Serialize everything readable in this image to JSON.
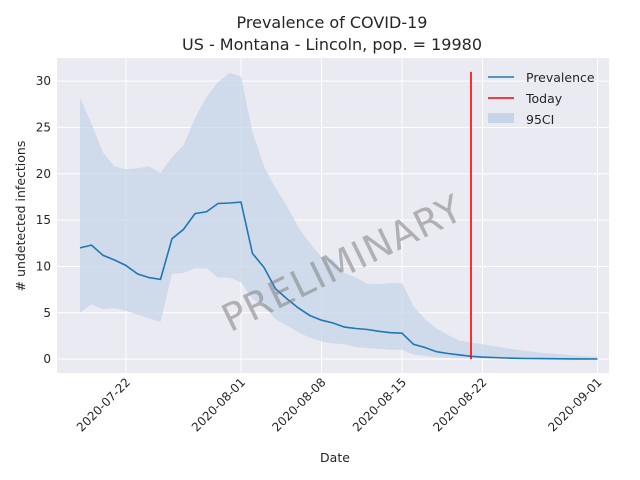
{
  "chart_data": {
    "type": "line",
    "title": "Prevalence of COVID-19",
    "subtitle": "US - Montana - Lincoln, pop. = 19980",
    "xlabel": "Date",
    "ylabel": "# undetected infections",
    "x_ticks": [
      "2020-07-22",
      "2020-08-01",
      "2020-08-08",
      "2020-08-15",
      "2020-08-22",
      "2020-09-01"
    ],
    "y_ticks": [
      0,
      5,
      10,
      15,
      20,
      25,
      30
    ],
    "xlim": [
      "2020-07-16",
      "2020-09-02"
    ],
    "ylim": [
      -1.5,
      32.5
    ],
    "grid": true,
    "legend_position": "top-right",
    "watermark": "PRELIMINARY",
    "today": "2020-08-21",
    "today_range": [
      0,
      31
    ],
    "colors": {
      "prevalence": "#1f77b4",
      "today": "#ff0000",
      "ci": "#c6d5e8",
      "background": "#eaeaf2",
      "grid": "#ffffff"
    },
    "series": [
      {
        "name": "Prevalence",
        "x": [
          "2020-07-18",
          "2020-07-19",
          "2020-07-20",
          "2020-07-21",
          "2020-07-22",
          "2020-07-23",
          "2020-07-24",
          "2020-07-25",
          "2020-07-26",
          "2020-07-27",
          "2020-07-28",
          "2020-07-29",
          "2020-07-30",
          "2020-07-31",
          "2020-08-01",
          "2020-08-02",
          "2020-08-03",
          "2020-08-04",
          "2020-08-05",
          "2020-08-06",
          "2020-08-07",
          "2020-08-08",
          "2020-08-09",
          "2020-08-10",
          "2020-08-11",
          "2020-08-12",
          "2020-08-13",
          "2020-08-14",
          "2020-08-15",
          "2020-08-16",
          "2020-08-17",
          "2020-08-18",
          "2020-08-19",
          "2020-08-20",
          "2020-08-21",
          "2020-08-22",
          "2020-08-23",
          "2020-08-24",
          "2020-08-25",
          "2020-08-26",
          "2020-08-27",
          "2020-08-28",
          "2020-08-29",
          "2020-08-30",
          "2020-08-31",
          "2020-09-01"
        ],
        "values": [
          12.0,
          12.3,
          11.2,
          10.7,
          10.1,
          9.2,
          8.8,
          8.6,
          13.0,
          14.0,
          15.7,
          15.9,
          16.8,
          16.85,
          16.95,
          11.4,
          9.9,
          7.6,
          6.5,
          5.5,
          4.7,
          4.2,
          3.9,
          3.45,
          3.3,
          3.2,
          3.0,
          2.85,
          2.8,
          1.6,
          1.25,
          0.8,
          0.6,
          0.45,
          0.3,
          0.22,
          0.17,
          0.12,
          0.09,
          0.07,
          0.05,
          0.04,
          0.03,
          0.02,
          0.02,
          0.01
        ]
      },
      {
        "name": "95CI",
        "x": [
          "2020-07-18",
          "2020-07-19",
          "2020-07-20",
          "2020-07-21",
          "2020-07-22",
          "2020-07-23",
          "2020-07-24",
          "2020-07-25",
          "2020-07-26",
          "2020-07-27",
          "2020-07-28",
          "2020-07-29",
          "2020-07-30",
          "2020-07-31",
          "2020-08-01",
          "2020-08-02",
          "2020-08-03",
          "2020-08-04",
          "2020-08-05",
          "2020-08-06",
          "2020-08-07",
          "2020-08-08",
          "2020-08-09",
          "2020-08-10",
          "2020-08-11",
          "2020-08-12",
          "2020-08-13",
          "2020-08-14",
          "2020-08-15",
          "2020-08-16",
          "2020-08-17",
          "2020-08-18",
          "2020-08-19",
          "2020-08-20",
          "2020-08-21",
          "2020-08-22",
          "2020-08-23",
          "2020-08-24",
          "2020-08-25",
          "2020-08-26",
          "2020-08-27",
          "2020-08-28",
          "2020-08-29",
          "2020-08-30",
          "2020-08-31",
          "2020-09-01"
        ],
        "lower": [
          5.0,
          5.9,
          5.4,
          5.5,
          5.2,
          4.8,
          4.4,
          4.0,
          9.2,
          9.3,
          9.8,
          9.8,
          8.8,
          8.8,
          8.3,
          6.5,
          5.8,
          4.3,
          3.6,
          2.9,
          2.3,
          1.9,
          1.7,
          1.6,
          1.3,
          1.2,
          1.1,
          1.0,
          1.0,
          0.5,
          0.35,
          0.2,
          0.15,
          0.1,
          0.07,
          0.05,
          0.04,
          0.03,
          0.02,
          0.01,
          0.01,
          0.01,
          0.0,
          0.0,
          0.0,
          0.0
        ],
        "upper": [
          28.2,
          25.4,
          22.3,
          20.8,
          20.5,
          20.6,
          20.8,
          20.1,
          21.8,
          23.1,
          26.0,
          28.3,
          29.9,
          30.9,
          30.5,
          24.5,
          20.8,
          18.5,
          16.5,
          14.2,
          12.5,
          11.0,
          10.7,
          9.3,
          8.8,
          8.1,
          8.1,
          8.2,
          8.2,
          5.7,
          4.3,
          3.3,
          2.6,
          2.0,
          1.8,
          1.6,
          1.4,
          1.2,
          1.0,
          0.85,
          0.7,
          0.6,
          0.5,
          0.4,
          0.3,
          0.25
        ]
      },
      {
        "name": "Today"
      }
    ]
  }
}
